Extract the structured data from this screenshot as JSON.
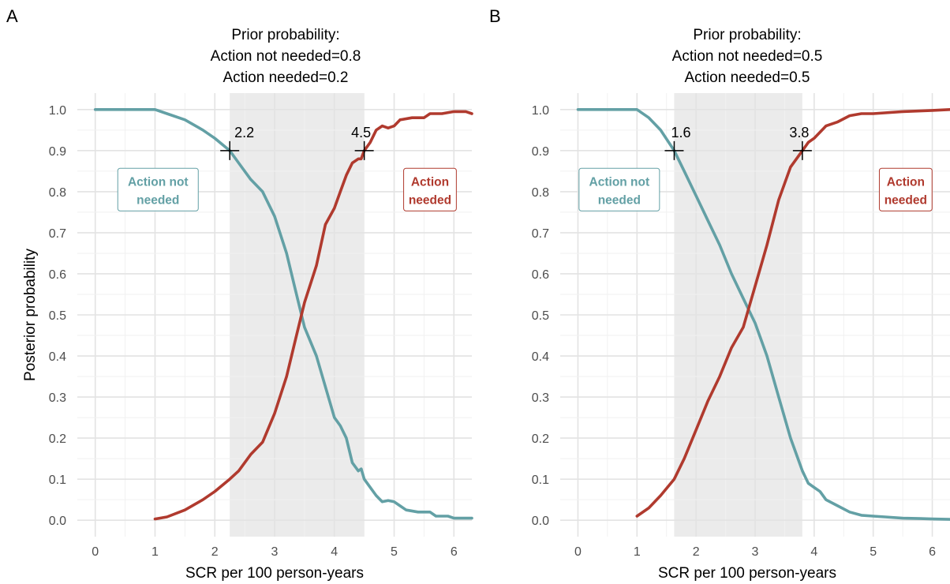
{
  "chart_data": [
    {
      "type": "line",
      "panel_label": "A",
      "title_lines": [
        "Prior probability:",
        "Action not needed=0.8",
        "Action needed=0.2"
      ],
      "xlabel": "SCR per 100 person-years",
      "ylabel": "Posterior probability",
      "xlim": [
        -0.3,
        6.3
      ],
      "ylim": [
        -0.04,
        1.04
      ],
      "x_ticks": [
        0,
        1,
        2,
        3,
        4,
        5,
        6
      ],
      "y_ticks": [
        "0.0",
        "0.1",
        "0.2",
        "0.3",
        "0.4",
        "0.5",
        "0.6",
        "0.7",
        "0.8",
        "0.9",
        "1.0"
      ],
      "grid": true,
      "shaded_region": [
        2.25,
        4.5
      ],
      "series": [
        {
          "name": "Action not needed",
          "color": "#63a0a5",
          "points": [
            [
              0,
              1.0
            ],
            [
              1.0,
              1.0
            ],
            [
              1.2,
              0.99
            ],
            [
              1.5,
              0.975
            ],
            [
              1.8,
              0.95
            ],
            [
              2.0,
              0.93
            ],
            [
              2.25,
              0.9
            ],
            [
              2.4,
              0.87
            ],
            [
              2.6,
              0.83
            ],
            [
              2.8,
              0.8
            ],
            [
              3.0,
              0.74
            ],
            [
              3.2,
              0.65
            ],
            [
              3.35,
              0.56
            ],
            [
              3.5,
              0.47
            ],
            [
              3.7,
              0.4
            ],
            [
              3.9,
              0.3
            ],
            [
              4.0,
              0.25
            ],
            [
              4.1,
              0.23
            ],
            [
              4.2,
              0.2
            ],
            [
              4.3,
              0.14
            ],
            [
              4.4,
              0.12
            ],
            [
              4.45,
              0.125
            ],
            [
              4.5,
              0.1
            ],
            [
              4.6,
              0.08
            ],
            [
              4.7,
              0.06
            ],
            [
              4.8,
              0.045
            ],
            [
              4.9,
              0.048
            ],
            [
              5.0,
              0.045
            ],
            [
              5.1,
              0.035
            ],
            [
              5.2,
              0.025
            ],
            [
              5.4,
              0.02
            ],
            [
              5.6,
              0.02
            ],
            [
              5.7,
              0.01
            ],
            [
              5.9,
              0.01
            ],
            [
              6.0,
              0.005
            ],
            [
              6.3,
              0.005
            ]
          ]
        },
        {
          "name": "Action needed",
          "color": "#b03a2e",
          "points": [
            [
              1.0,
              0.003
            ],
            [
              1.2,
              0.008
            ],
            [
              1.5,
              0.025
            ],
            [
              1.8,
              0.05
            ],
            [
              2.0,
              0.07
            ],
            [
              2.25,
              0.1
            ],
            [
              2.4,
              0.12
            ],
            [
              2.6,
              0.16
            ],
            [
              2.8,
              0.19
            ],
            [
              3.0,
              0.26
            ],
            [
              3.2,
              0.35
            ],
            [
              3.35,
              0.44
            ],
            [
              3.5,
              0.53
            ],
            [
              3.7,
              0.62
            ],
            [
              3.85,
              0.72
            ],
            [
              4.0,
              0.76
            ],
            [
              4.1,
              0.8
            ],
            [
              4.2,
              0.84
            ],
            [
              4.3,
              0.87
            ],
            [
              4.4,
              0.88
            ],
            [
              4.45,
              0.88
            ],
            [
              4.5,
              0.9
            ],
            [
              4.6,
              0.92
            ],
            [
              4.7,
              0.95
            ],
            [
              4.8,
              0.96
            ],
            [
              4.9,
              0.955
            ],
            [
              5.0,
              0.96
            ],
            [
              5.1,
              0.975
            ],
            [
              5.3,
              0.98
            ],
            [
              5.5,
              0.98
            ],
            [
              5.6,
              0.99
            ],
            [
              5.8,
              0.99
            ],
            [
              6.0,
              0.995
            ],
            [
              6.2,
              0.995
            ],
            [
              6.3,
              0.99
            ]
          ]
        }
      ],
      "markers": [
        {
          "x": 2.25,
          "y": 0.9,
          "label": "2.2"
        },
        {
          "x": 4.5,
          "y": 0.9,
          "label": "4.5"
        }
      ],
      "annotations": [
        {
          "text": [
            "Action not",
            "needed"
          ],
          "x": 1.05,
          "y": 0.805,
          "color": "#63a0a5",
          "anchor": "middle"
        },
        {
          "text": [
            "Action",
            "needed"
          ],
          "x": 5.6,
          "y": 0.805,
          "color": "#b03a2e",
          "anchor": "middle"
        }
      ]
    },
    {
      "type": "line",
      "panel_label": "B",
      "title_lines": [
        "Prior probability:",
        "Action not needed=0.5",
        "Action needed=0.5"
      ],
      "xlabel": "SCR per 100 person-years",
      "ylabel": "",
      "xlim": [
        -0.3,
        6.3
      ],
      "ylim": [
        -0.04,
        1.04
      ],
      "x_ticks": [
        0,
        1,
        2,
        3,
        4,
        5,
        6
      ],
      "y_ticks": [
        "0.0",
        "0.1",
        "0.2",
        "0.3",
        "0.4",
        "0.5",
        "0.6",
        "0.7",
        "0.8",
        "0.9",
        "1.0"
      ],
      "grid": true,
      "shaded_region": [
        1.63,
        3.8
      ],
      "series": [
        {
          "name": "Action not needed",
          "color": "#63a0a5",
          "points": [
            [
              0,
              1.0
            ],
            [
              1.0,
              1.0
            ],
            [
              1.2,
              0.98
            ],
            [
              1.4,
              0.95
            ],
            [
              1.63,
              0.9
            ],
            [
              1.8,
              0.85
            ],
            [
              2.0,
              0.79
            ],
            [
              2.2,
              0.73
            ],
            [
              2.4,
              0.67
            ],
            [
              2.6,
              0.6
            ],
            [
              2.8,
              0.54
            ],
            [
              3.0,
              0.48
            ],
            [
              3.2,
              0.4
            ],
            [
              3.4,
              0.3
            ],
            [
              3.6,
              0.2
            ],
            [
              3.8,
              0.12
            ],
            [
              3.9,
              0.09
            ],
            [
              4.0,
              0.08
            ],
            [
              4.1,
              0.07
            ],
            [
              4.2,
              0.05
            ],
            [
              4.4,
              0.035
            ],
            [
              4.6,
              0.02
            ],
            [
              4.8,
              0.012
            ],
            [
              5.0,
              0.01
            ],
            [
              5.2,
              0.008
            ],
            [
              5.5,
              0.005
            ],
            [
              5.8,
              0.004
            ],
            [
              6.0,
              0.003
            ],
            [
              6.3,
              0.002
            ]
          ]
        },
        {
          "name": "Action needed",
          "color": "#b03a2e",
          "points": [
            [
              1.0,
              0.01
            ],
            [
              1.2,
              0.03
            ],
            [
              1.4,
              0.06
            ],
            [
              1.63,
              0.1
            ],
            [
              1.8,
              0.15
            ],
            [
              2.0,
              0.22
            ],
            [
              2.2,
              0.29
            ],
            [
              2.4,
              0.35
            ],
            [
              2.6,
              0.42
            ],
            [
              2.8,
              0.47
            ],
            [
              3.0,
              0.57
            ],
            [
              3.2,
              0.67
            ],
            [
              3.4,
              0.78
            ],
            [
              3.6,
              0.86
            ],
            [
              3.8,
              0.9
            ],
            [
              3.9,
              0.92
            ],
            [
              4.0,
              0.93
            ],
            [
              4.2,
              0.96
            ],
            [
              4.4,
              0.97
            ],
            [
              4.6,
              0.985
            ],
            [
              4.8,
              0.99
            ],
            [
              5.0,
              0.99
            ],
            [
              5.5,
              0.995
            ],
            [
              6.0,
              0.998
            ],
            [
              6.3,
              1.0
            ]
          ]
        }
      ],
      "markers": [
        {
          "x": 1.63,
          "y": 0.9,
          "label": "1.6"
        },
        {
          "x": 3.8,
          "y": 0.9,
          "label": "3.8"
        }
      ],
      "annotations": [
        {
          "text": [
            "Action not",
            "needed"
          ],
          "x": 0.7,
          "y": 0.805,
          "color": "#63a0a5",
          "anchor": "middle"
        },
        {
          "text": [
            "Action",
            "needed"
          ],
          "x": 5.55,
          "y": 0.805,
          "color": "#b03a2e",
          "anchor": "middle"
        }
      ]
    }
  ]
}
